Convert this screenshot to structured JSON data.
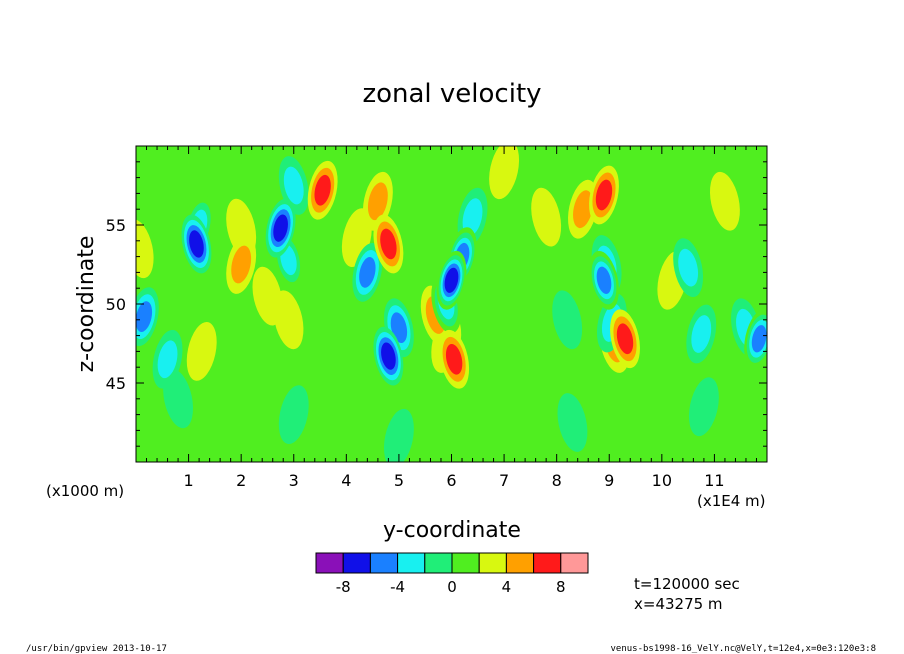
{
  "chart_data": {
    "type": "heatmap",
    "title": "zonal velocity",
    "xlabel": "y-coordinate",
    "ylabel": "z-coordinate",
    "x_scale_note": "(x1E4 m)",
    "y_scale_note": "(x1000 m)",
    "xlim": [
      0,
      12
    ],
    "ylim": [
      40,
      60
    ],
    "x_ticks": [
      1,
      2,
      3,
      4,
      5,
      6,
      7,
      8,
      9,
      10,
      11
    ],
    "y_ticks": [
      45,
      50,
      55
    ],
    "colorbar": {
      "levels": [
        -10,
        -8,
        -6,
        -4,
        -2,
        0,
        2,
        4,
        6,
        8,
        10
      ],
      "tick_labels": [
        "-8",
        "-4",
        "0",
        "4",
        "8"
      ],
      "tick_values": [
        -8,
        -4,
        0,
        4,
        8
      ],
      "colors": [
        "#8a10b8",
        "#1010e8",
        "#1a80ff",
        "#18f0f0",
        "#20ee78",
        "#50ee20",
        "#d8f810",
        "#ffa000",
        "#ff1a1a",
        "#ff9898"
      ]
    },
    "background_value": 1,
    "features": [
      {
        "x": 6.0,
        "y": 51.5,
        "value": -8
      },
      {
        "x": 6.2,
        "y": 53.0,
        "value": -6
      },
      {
        "x": 5.9,
        "y": 50.0,
        "value": -4
      },
      {
        "x": 6.4,
        "y": 55.5,
        "value": -3
      },
      {
        "x": 1.2,
        "y": 55.0,
        "value": -4
      },
      {
        "x": 1.15,
        "y": 53.8,
        "value": -7
      },
      {
        "x": 2.75,
        "y": 54.8,
        "value": -7
      },
      {
        "x": 2.9,
        "y": 52.8,
        "value": -4
      },
      {
        "x": 0.15,
        "y": 49.2,
        "value": -5
      },
      {
        "x": 0.05,
        "y": 53.5,
        "value": 3
      },
      {
        "x": 5.0,
        "y": 48.5,
        "value": -5
      },
      {
        "x": 4.8,
        "y": 46.7,
        "value": -7
      },
      {
        "x": 4.4,
        "y": 52.0,
        "value": -5
      },
      {
        "x": 8.9,
        "y": 51.5,
        "value": -6
      },
      {
        "x": 8.95,
        "y": 52.5,
        "value": -3
      },
      {
        "x": 9.05,
        "y": 48.8,
        "value": -3
      },
      {
        "x": 11.85,
        "y": 47.8,
        "value": -6
      },
      {
        "x": 11.6,
        "y": 48.5,
        "value": -3
      },
      {
        "x": 10.75,
        "y": 48.1,
        "value": -3
      },
      {
        "x": 10.5,
        "y": 52.3,
        "value": -3
      },
      {
        "x": 0.6,
        "y": 46.5,
        "value": -3
      },
      {
        "x": 3.0,
        "y": 57.5,
        "value": -3
      },
      {
        "x": 4.6,
        "y": 56.5,
        "value": 4
      },
      {
        "x": 4.8,
        "y": 53.8,
        "value": 7
      },
      {
        "x": 4.2,
        "y": 54.2,
        "value": 3
      },
      {
        "x": 8.5,
        "y": 56.0,
        "value": 5
      },
      {
        "x": 8.9,
        "y": 56.9,
        "value": 7
      },
      {
        "x": 7.8,
        "y": 55.5,
        "value": 3
      },
      {
        "x": 9.3,
        "y": 47.8,
        "value": 7
      },
      {
        "x": 9.1,
        "y": 47.5,
        "value": 4
      },
      {
        "x": 3.55,
        "y": 57.2,
        "value": 6
      },
      {
        "x": 6.05,
        "y": 46.5,
        "value": 6
      },
      {
        "x": 5.9,
        "y": 47.5,
        "value": 3
      },
      {
        "x": 2.0,
        "y": 52.5,
        "value": 4
      },
      {
        "x": 2.0,
        "y": 54.8,
        "value": 3
      },
      {
        "x": 1.25,
        "y": 47.0,
        "value": 3
      },
      {
        "x": 2.9,
        "y": 49.0,
        "value": 3
      },
      {
        "x": 10.2,
        "y": 51.5,
        "value": 3
      },
      {
        "x": 11.2,
        "y": 56.5,
        "value": 3
      },
      {
        "x": 5.7,
        "y": 49.3,
        "value": 4
      },
      {
        "x": 3.0,
        "y": 43.0,
        "value": -1
      },
      {
        "x": 8.3,
        "y": 42.5,
        "value": -1
      },
      {
        "x": 5.0,
        "y": 41.5,
        "value": -1
      },
      {
        "x": 0.8,
        "y": 44.0,
        "value": -1
      },
      {
        "x": 10.8,
        "y": 43.5,
        "value": -1
      },
      {
        "x": 8.2,
        "y": 49.0,
        "value": -1
      },
      {
        "x": 2.5,
        "y": 50.5,
        "value": 2
      },
      {
        "x": 7.0,
        "y": 58.5,
        "value": 2
      }
    ]
  },
  "annotations": {
    "time": "t=120000 sec",
    "position": "x=43275 m"
  },
  "footer": {
    "left": "/usr/bin/gpview  2013-10-17",
    "right": "venus-bs1998-16_VelY.nc@VelY,t=12e4,x=0e3:120e3:8"
  }
}
